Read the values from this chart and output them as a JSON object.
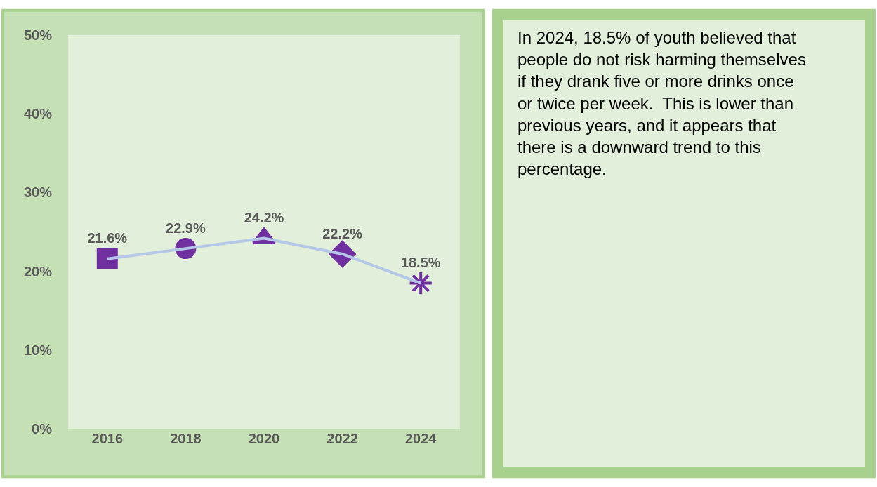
{
  "chart_data": [
    {
      "type": "line",
      "categories": [
        "2016",
        "2018",
        "2020",
        "2022",
        "2024"
      ],
      "series": [
        {
          "color": "#b4c7e7",
          "colors": [
            "#7030a0",
            "#7030a0",
            "#7030a0",
            "#7030a0",
            "#7030a0"
          ],
          "values": [
            21.6,
            22.9,
            24.2,
            22.2,
            18.5
          ]
        }
      ],
      "marker": [
        "square",
        "circle",
        "triangle",
        "diamond",
        "cross"
      ],
      "ylim": [
        0,
        50
      ],
      "yticks": [
        {
          "value": 0,
          "label": "0%"
        },
        {
          "value": 10,
          "label": "10%"
        },
        {
          "value": 20,
          "label": "20%"
        },
        {
          "value": 30,
          "label": "30%"
        },
        {
          "value": 40,
          "label": "40%"
        },
        {
          "value": 50,
          "label": "50%"
        }
      ],
      "value_labels": [
        "21.6%",
        "22.9%",
        "24.2%",
        "22.2%",
        "18.5%"
      ],
      "grid": false
    },
    {
      "type": "other",
      "annotations": [
        "In 2024, 18.5% of youth believed that people do not risk harming themselves if they drank five or more drinks once or twice per week.  This is lower than previous years, and it appears that there is a downward trend to this percentage."
      ]
    }
  ]
}
